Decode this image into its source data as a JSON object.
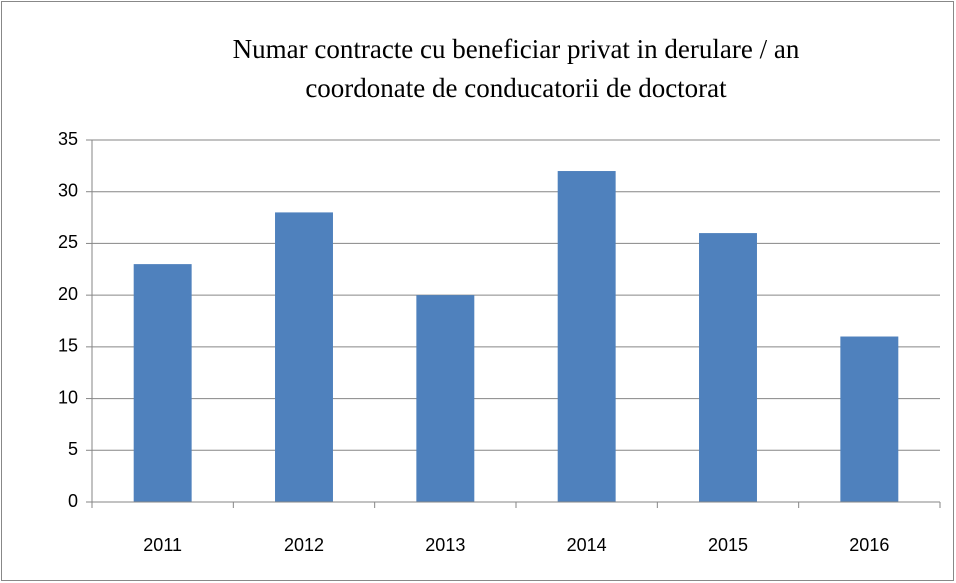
{
  "chart_data": {
    "type": "bar",
    "title": [
      "Numar contracte cu beneficiar privat in derulare / an",
      "coordonate de conducatorii de doctorat"
    ],
    "categories": [
      "2011",
      "2012",
      "2013",
      "2014",
      "2015",
      "2016"
    ],
    "values": [
      23,
      28,
      20,
      32,
      26,
      16
    ],
    "color": "#4f81bd",
    "ylim": [
      0,
      35
    ],
    "yticks": [
      0,
      5,
      10,
      15,
      20,
      25,
      30,
      35
    ],
    "grid": true
  }
}
